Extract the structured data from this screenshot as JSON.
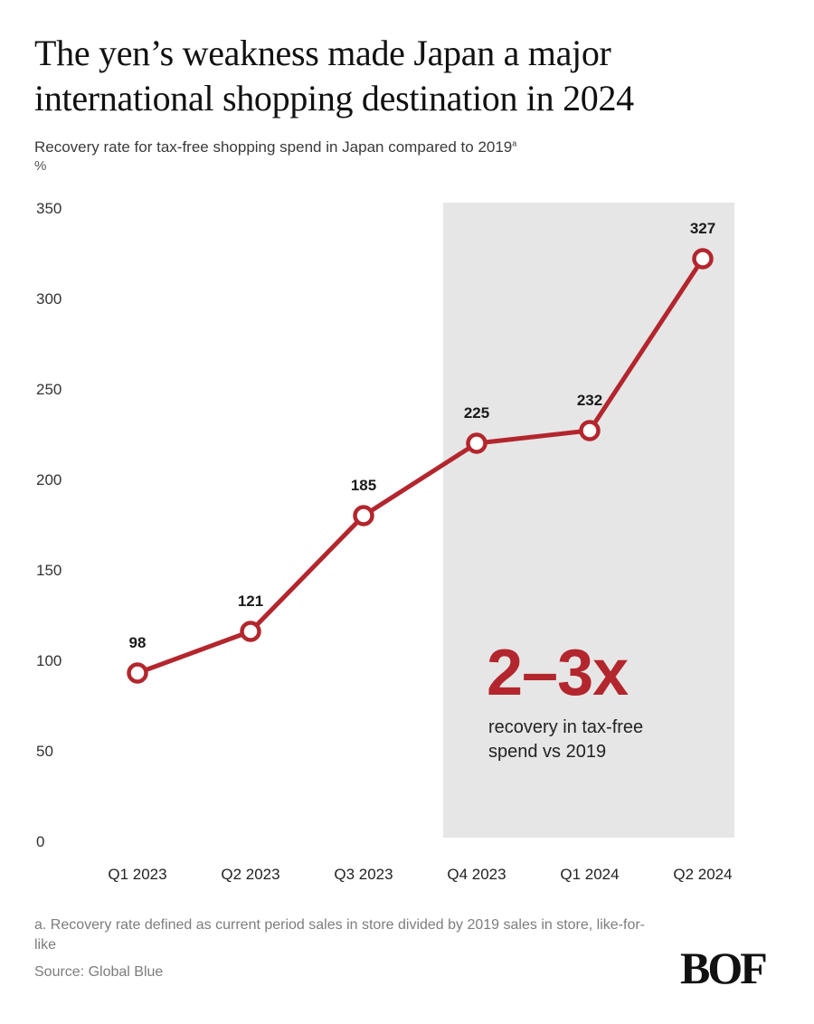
{
  "title": "The yen’s weakness made Japan a major international shopping destination in 2024",
  "subtitle": "Recovery rate for tax-free shopping spend in Japan compared to 2019",
  "subtitle_marker": "a",
  "unit": "%",
  "footnote": "a. Recovery rate defined as current period sales in store divided by 2019 sales in store, like-for-like",
  "source": "Source: Global Blue",
  "logo": "BOF",
  "chart_data": {
    "type": "line",
    "categories": [
      "Q1 2023",
      "Q2 2023",
      "Q3 2023",
      "Q4 2023",
      "Q1 2024",
      "Q2 2024"
    ],
    "series": [
      {
        "values": [
          98,
          121,
          185,
          225,
          232,
          327
        ],
        "color": "#b3262d"
      }
    ],
    "data_labels": [
      "98",
      "121",
      "185",
      "225",
      "232",
      "327"
    ],
    "ylim": [
      0,
      350
    ],
    "yticks": [
      0,
      50,
      100,
      150,
      200,
      250,
      300,
      350
    ],
    "ytick_labels": [
      "0",
      "50",
      "100",
      "150",
      "200",
      "250",
      "300",
      "350"
    ],
    "grid": false,
    "highlight": {
      "from_category": "Q4 2023",
      "to_category": "Q2 2024",
      "color": "#e6e6e6",
      "big_text": "2–3x",
      "big_text_color": "#b3262d",
      "caption_lines": [
        "recovery in tax-free",
        "spend vs 2019"
      ]
    }
  }
}
